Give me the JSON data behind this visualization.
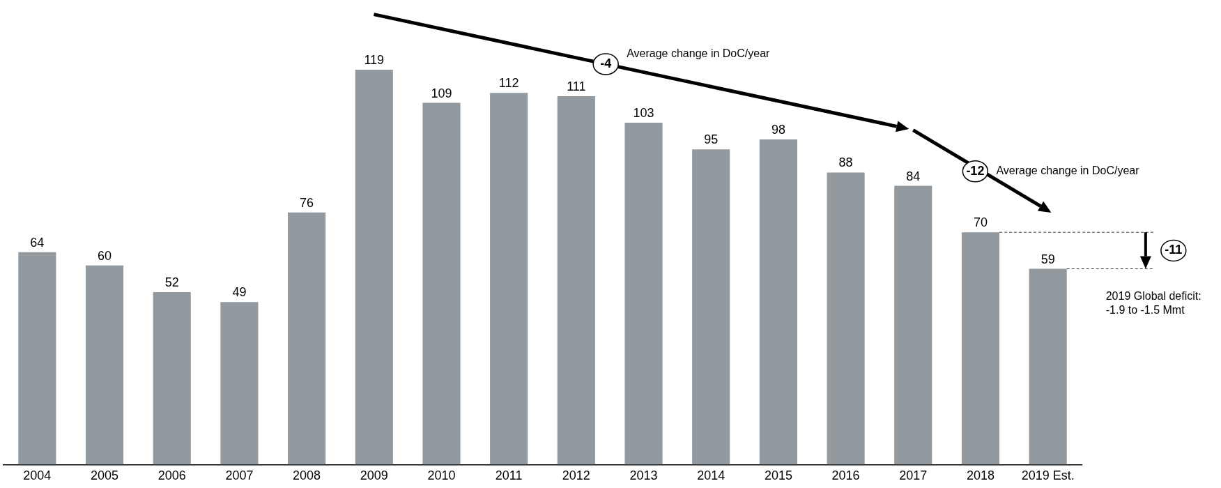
{
  "chart_data": {
    "type": "bar",
    "categories": [
      "2004",
      "2005",
      "2006",
      "2007",
      "2008",
      "2009",
      "2010",
      "2011",
      "2012",
      "2013",
      "2014",
      "2015",
      "2016",
      "2017",
      "2018",
      "2019 Est."
    ],
    "values": [
      64,
      60,
      52,
      49,
      76,
      119,
      109,
      112,
      111,
      103,
      95,
      98,
      88,
      84,
      70,
      59
    ],
    "color": "#939a9f",
    "data_labels": true,
    "grid": false,
    "legend": false,
    "tick_labels": "x",
    "annotations": [
      "-4",
      "Average change in DoC/year",
      "-12",
      "Average change in DoC/year",
      "-11",
      "2019 Global deficit:\n-1.9 to -1.5 Mmt"
    ]
  }
}
